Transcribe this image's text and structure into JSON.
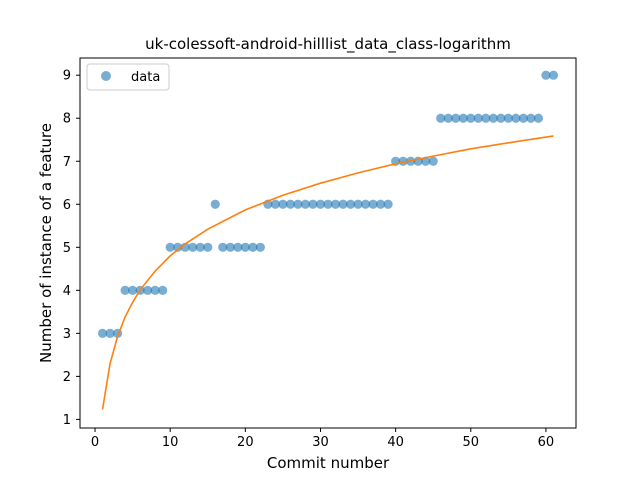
{
  "chart_data": {
    "type": "scatter",
    "title": "uk-colessoft-android-hilllist_data_class-logarithm",
    "xlabel": "Commit number",
    "ylabel": "Number of instance of a feature",
    "xlim": [
      -2.0,
      64.0
    ],
    "ylim": [
      0.8,
      9.4
    ],
    "xticks": [
      0,
      10,
      20,
      30,
      40,
      50,
      60
    ],
    "yticks": [
      1,
      2,
      3,
      4,
      5,
      6,
      7,
      8,
      9
    ],
    "legend": {
      "placement": "top-left",
      "entries": [
        "data"
      ]
    },
    "grid": false,
    "series": [
      {
        "name": "data",
        "kind": "scatter",
        "color": "#1f77b4",
        "x": [
          1,
          2,
          3,
          4,
          5,
          6,
          7,
          8,
          9,
          10,
          11,
          12,
          13,
          14,
          15,
          16,
          17,
          18,
          19,
          20,
          21,
          22,
          23,
          24,
          25,
          26,
          27,
          28,
          29,
          30,
          31,
          32,
          33,
          34,
          35,
          36,
          37,
          38,
          39,
          40,
          41,
          42,
          43,
          44,
          45,
          46,
          47,
          48,
          49,
          50,
          51,
          52,
          53,
          54,
          55,
          56,
          57,
          58,
          59,
          60,
          61
        ],
        "y": [
          3,
          3,
          3,
          4,
          4,
          4,
          4,
          4,
          4,
          5,
          5,
          5,
          5,
          5,
          5,
          6,
          5,
          5,
          5,
          5,
          5,
          5,
          6,
          6,
          6,
          6,
          6,
          6,
          6,
          6,
          6,
          6,
          6,
          6,
          6,
          6,
          6,
          6,
          6,
          7,
          7,
          7,
          7,
          7,
          7,
          8,
          8,
          8,
          8,
          8,
          8,
          8,
          8,
          8,
          8,
          8,
          8,
          8,
          8,
          9,
          9
        ]
      },
      {
        "kind": "line",
        "color": "#ff7f0e",
        "x": [
          1,
          2,
          3,
          4,
          5,
          6,
          8,
          10,
          12,
          15,
          20,
          25,
          30,
          35,
          40,
          45,
          50,
          55,
          61
        ],
        "y": [
          1.23,
          2.3,
          2.93,
          3.38,
          3.72,
          4.01,
          4.45,
          4.8,
          5.08,
          5.42,
          5.87,
          6.21,
          6.49,
          6.73,
          6.94,
          7.12,
          7.29,
          7.43,
          7.59
        ]
      }
    ]
  },
  "colors": {
    "scatter": "#1f77b4",
    "fit_line": "#ff7f0e",
    "axes": "#000000",
    "background": "#ffffff"
  }
}
